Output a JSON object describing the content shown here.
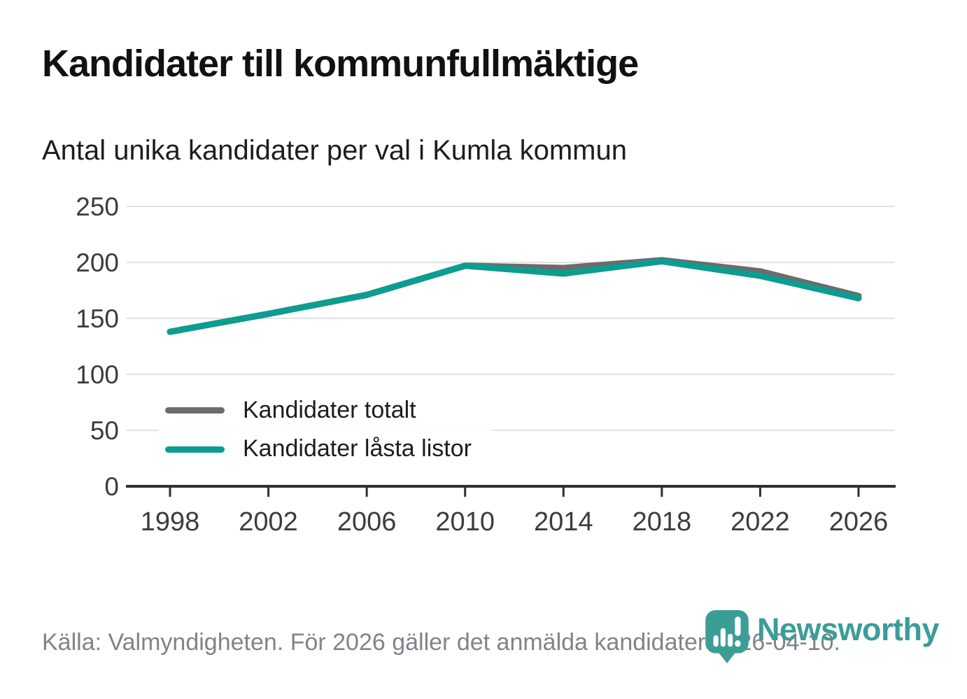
{
  "header": {
    "title": "Kandidater till kommunfullmäktige",
    "subtitle": "Antal unika kandidater per val i Kumla kommun"
  },
  "chart_data": {
    "type": "line",
    "x": [
      1998,
      2002,
      2006,
      2010,
      2014,
      2018,
      2022,
      2026
    ],
    "series": [
      {
        "name": "Kandidater totalt",
        "color": "#6e6a6d",
        "values": [
          138,
          154,
          171,
          197,
          195,
          202,
          192,
          170
        ]
      },
      {
        "name": "Kandidater låsta listor",
        "color": "#0d9c90",
        "values": [
          138,
          154,
          171,
          197,
          190,
          201,
          188,
          168
        ]
      }
    ],
    "title": "Kandidater till kommunfullmäktige",
    "subtitle": "Antal unika kandidater per val i Kumla kommun",
    "ylim": [
      0,
      250
    ],
    "yticks": [
      0,
      50,
      100,
      150,
      200,
      250
    ],
    "grid": true,
    "legend_position": "inside-bottom-left"
  },
  "footer": {
    "source": "Källa: Valmyndigheten. För 2026 gäller det anmälda kandidater 2026-04-10.",
    "logo_text": "Newsworthy"
  },
  "colors": {
    "grid": "#e2e2e2",
    "axis": "#2f2f2f",
    "tick_label": "#3c3c3c",
    "logo_teal": "#3c9d97",
    "footer_text": "#82828a"
  }
}
